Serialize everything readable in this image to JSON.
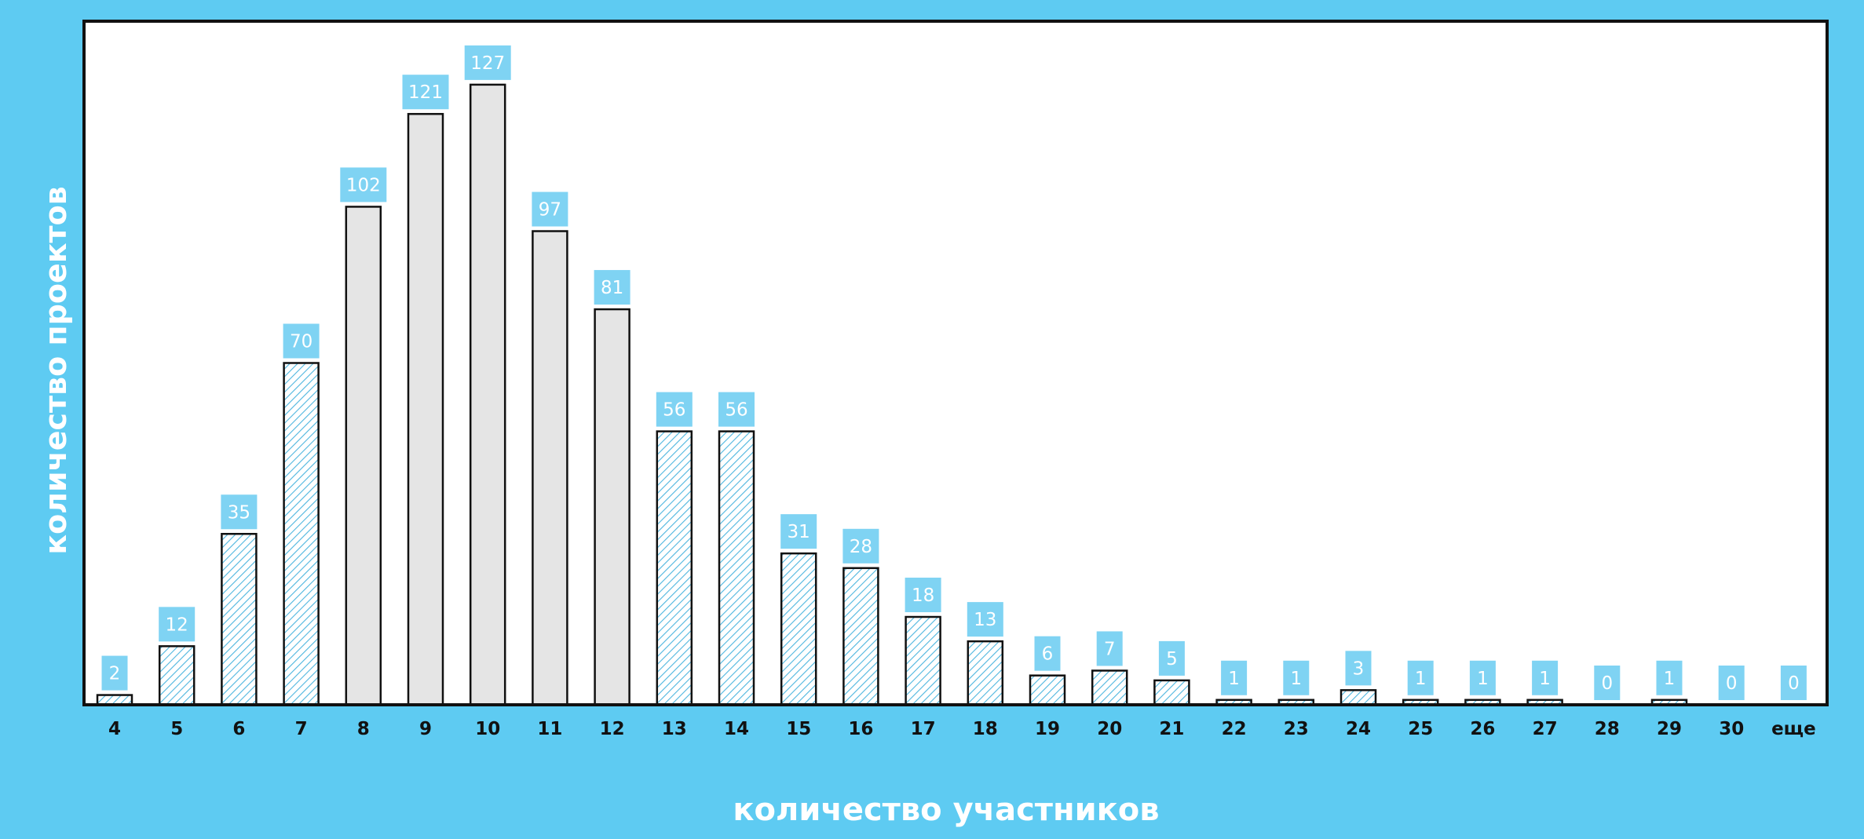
{
  "colors": {
    "background": "#5ecbf2",
    "plot_background": "#ffffff",
    "plot_border": "#111111",
    "gray_bar_fill": "#e5e5e5",
    "hatch_color": "#4eb6df",
    "bar_stroke": "#111111",
    "label_box": "#7fd3f3",
    "label_text": "#ffffff"
  },
  "chart_data": {
    "type": "bar",
    "title": "",
    "xlabel": "количество участников",
    "ylabel": "количество проектов",
    "categories": [
      "4",
      "5",
      "6",
      "7",
      "8",
      "9",
      "10",
      "11",
      "12",
      "13",
      "14",
      "15",
      "16",
      "17",
      "18",
      "19",
      "20",
      "21",
      "22",
      "23",
      "24",
      "25",
      "26",
      "27",
      "28",
      "29",
      "30",
      "еще"
    ],
    "values": [
      2,
      12,
      35,
      70,
      102,
      121,
      127,
      97,
      81,
      56,
      56,
      31,
      28,
      18,
      13,
      6,
      7,
      5,
      1,
      1,
      3,
      1,
      1,
      1,
      0,
      1,
      0,
      0
    ],
    "bar_styles": [
      "hatched",
      "hatched",
      "hatched",
      "hatched",
      "gray",
      "gray",
      "gray",
      "gray",
      "gray",
      "hatched",
      "hatched",
      "hatched",
      "hatched",
      "hatched",
      "hatched",
      "hatched",
      "hatched",
      "hatched",
      "hatched",
      "hatched",
      "hatched",
      "hatched",
      "hatched",
      "hatched",
      "hatched",
      "hatched",
      "hatched",
      "hatched"
    ],
    "data_labels": true,
    "ylim": [
      0,
      140
    ],
    "grid": false,
    "legend": "none"
  }
}
